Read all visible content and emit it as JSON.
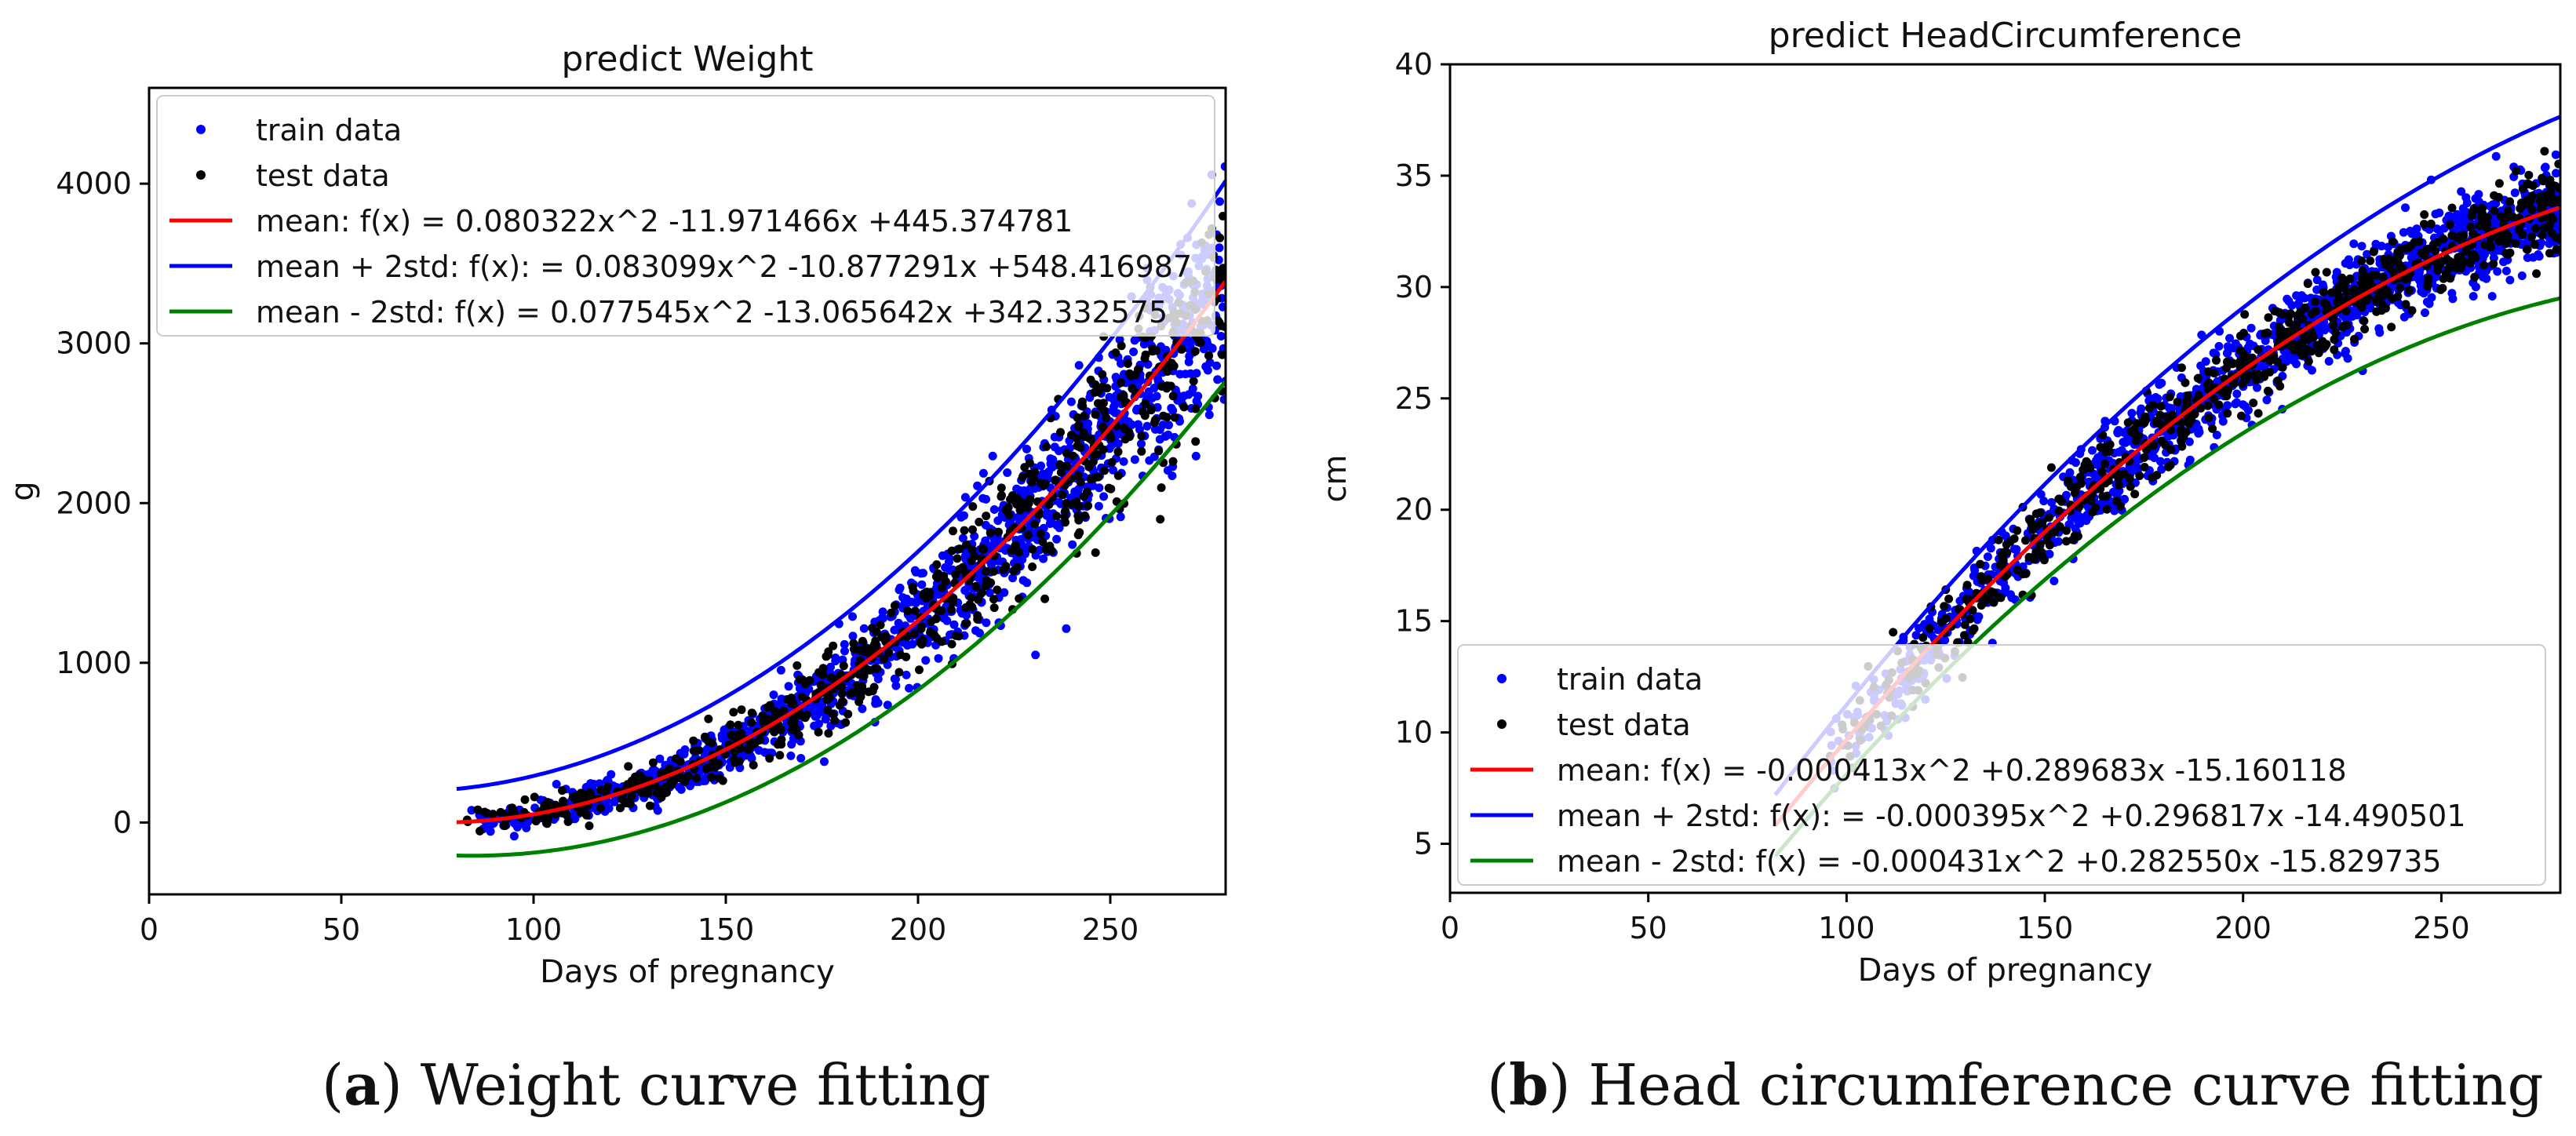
{
  "chart_data": [
    {
      "type": "scatter",
      "title": "predict Weight",
      "xlabel": "Days of pregnancy",
      "ylabel": "g",
      "xlim": [
        0,
        280
      ],
      "ylim": [
        -450,
        4600
      ],
      "xticks": [
        0,
        50,
        100,
        150,
        200,
        250
      ],
      "yticks": [
        0,
        1000,
        2000,
        3000,
        4000
      ],
      "legend_position": "top-left",
      "scatter_x_range": [
        82,
        280
      ],
      "scatter_sigma": 120,
      "series": [
        {
          "name": "train data",
          "kind": "points",
          "color": "#0000ff",
          "count": 1400
        },
        {
          "name": "test data",
          "kind": "points",
          "color": "#000000",
          "count": 700
        },
        {
          "name": "mean",
          "label": "mean: f(x) = 0.080322x^2 -11.971466x +445.374781",
          "kind": "curve",
          "color": "#ff0000",
          "coef": [
            0.080322,
            -11.971466,
            445.374781
          ],
          "x_range": [
            80,
            280
          ]
        },
        {
          "name": "mean + 2std",
          "label": "mean + 2std: f(x): = 0.083099x^2 -10.877291x +548.416987",
          "kind": "curve",
          "color": "#0000ff",
          "coef": [
            0.083099,
            -10.877291,
            548.416987
          ],
          "x_range": [
            80,
            280
          ]
        },
        {
          "name": "mean - 2std",
          "label": "mean - 2std: f(x) = 0.077545x^2 -13.065642x +342.332575",
          "kind": "curve",
          "color": "#008000",
          "coef": [
            0.077545,
            -13.065642,
            342.332575
          ],
          "x_range": [
            80,
            280
          ]
        }
      ]
    },
    {
      "type": "scatter",
      "title": "predict HeadCircumference",
      "xlabel": "Days of pregnancy",
      "ylabel": "cm",
      "xlim": [
        0,
        280
      ],
      "ylim": [
        2.8,
        40
      ],
      "xticks": [
        0,
        50,
        100,
        150,
        200,
        250
      ],
      "yticks": [
        5,
        10,
        15,
        20,
        25,
        30,
        35,
        40
      ],
      "legend_position": "lower-left",
      "scatter_x_range": [
        95,
        280
      ],
      "scatter_sigma": 0.95,
      "series": [
        {
          "name": "train data",
          "kind": "points",
          "color": "#0000ff",
          "count": 1400
        },
        {
          "name": "test data",
          "kind": "points",
          "color": "#000000",
          "count": 700
        },
        {
          "name": "mean",
          "label": "mean: f(x) = -0.000413x^2 +0.289683x -15.160118",
          "kind": "curve",
          "color": "#ff0000",
          "coef": [
            -0.000413,
            0.289683,
            -15.160118
          ],
          "x_range": [
            82,
            280
          ]
        },
        {
          "name": "mean + 2std",
          "label": "mean + 2std: f(x): = -0.000395x^2 +0.296817x -14.490501",
          "kind": "curve",
          "color": "#0000ff",
          "coef": [
            -0.000395,
            0.296817,
            -14.490501
          ],
          "x_range": [
            82,
            280
          ]
        },
        {
          "name": "mean - 2std",
          "label": "mean - 2std: f(x) = -0.000431x^2 +0.282550x -15.829735",
          "kind": "curve",
          "color": "#008000",
          "coef": [
            -0.000431,
            0.28255,
            -15.829735
          ],
          "x_range": [
            82,
            280
          ]
        }
      ]
    }
  ],
  "captions": [
    {
      "tag": "a",
      "text": "Weight curve fitting"
    },
    {
      "tag": "b",
      "text": "Head circumference curve fitting"
    }
  ]
}
